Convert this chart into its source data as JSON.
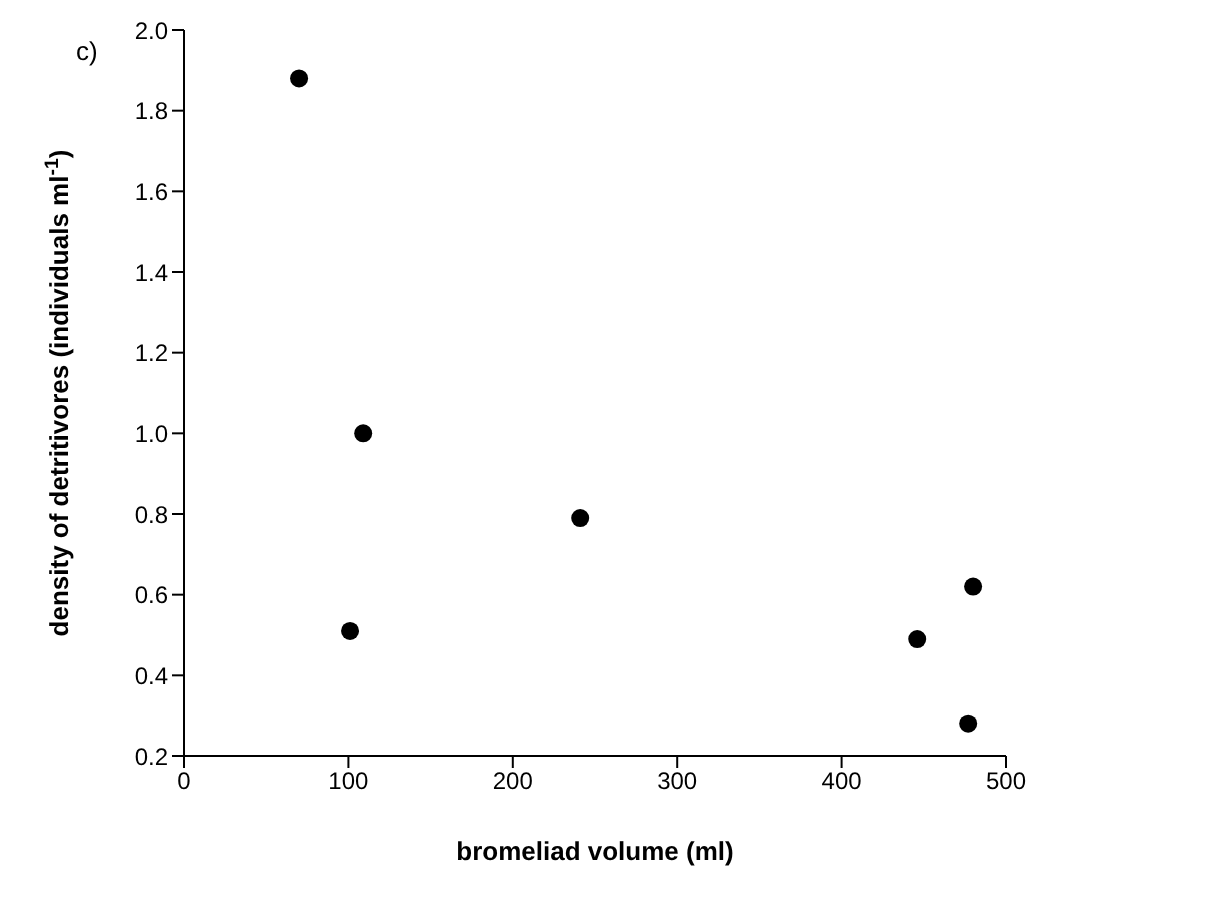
{
  "chart_data": {
    "type": "scatter",
    "title": "c)",
    "xlabel": "bromeliad volume (ml)",
    "ylabel": "density of detritivores (individuals ml$^{-1}$)",
    "x": [
      70,
      101,
      109,
      241,
      446,
      477,
      480
    ],
    "values": [
      1.88,
      0.51,
      1.0,
      0.79,
      0.49,
      0.28,
      0.62
    ],
    "color": "#000000",
    "marker": "circle",
    "grid": false,
    "legend": false,
    "xlim": [
      0,
      500
    ],
    "xticks": [
      0,
      100,
      200,
      300,
      400,
      500
    ],
    "ylim": [
      0.2,
      2.0
    ],
    "yticks": [
      0.2,
      0.4,
      0.6,
      0.8,
      {
        "value": 1,
        "label": "1.0"
      },
      1.2,
      1.4,
      1.6,
      1.8,
      {
        "value": 2,
        "label": "2.0"
      }
    ]
  }
}
